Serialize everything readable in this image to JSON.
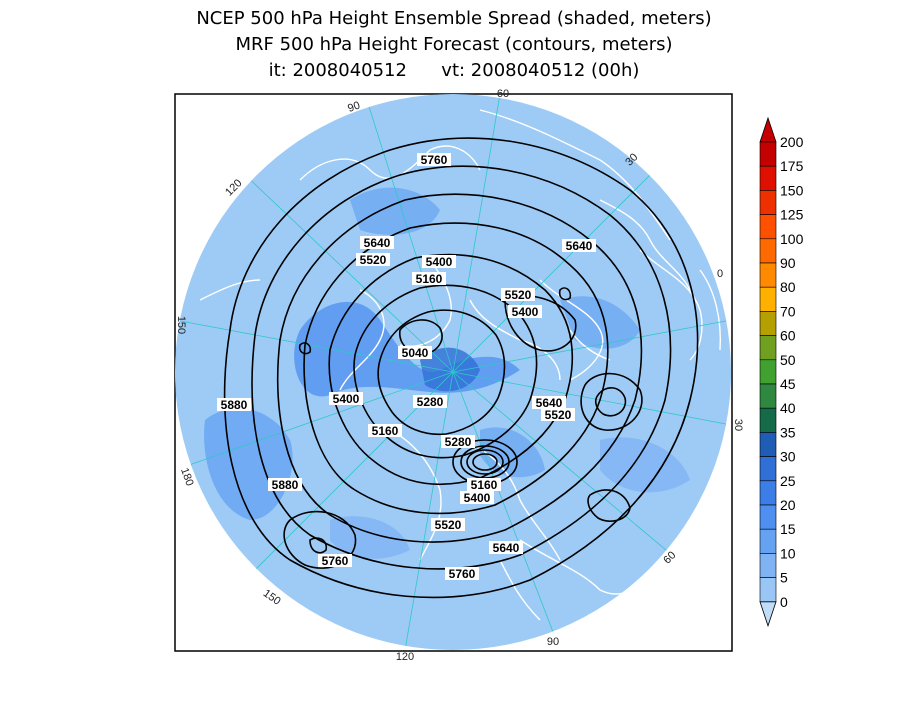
{
  "title": {
    "line1": "NCEP 500 hPa Height Ensemble Spread (shaded, meters)",
    "line2": "MRF 500 hPa Height Forecast (contours, meters)",
    "line3": "it: 2008040512      vt: 2008040512 (00h)"
  },
  "colors": {
    "ocean_base": "#9dcbf5",
    "coast": "#ffffff",
    "grid": "#2fc8c8",
    "contour": "#000000",
    "frame": "#000000"
  },
  "longitude_labels": [
    "60",
    "30",
    "0",
    "30",
    "60",
    "90",
    "120",
    "150",
    "180",
    "150",
    "120",
    "90"
  ],
  "contour_labels": [
    "5760",
    "5640",
    "5520",
    "5400",
    "5280",
    "5160",
    "5040",
    "5880"
  ],
  "colorbar": {
    "levels": [
      "200",
      "175",
      "150",
      "125",
      "100",
      "90",
      "80",
      "70",
      "60",
      "50",
      "45",
      "40",
      "35",
      "30",
      "25",
      "20",
      "15",
      "10",
      "5",
      "0"
    ],
    "colors": [
      "#c40000",
      "#e01000",
      "#ee3000",
      "#ff5000",
      "#ff6a00",
      "#ff8a00",
      "#ffb000",
      "#b4a000",
      "#70a020",
      "#40a030",
      "#2e8840",
      "#156a48",
      "#1f5cb4",
      "#2f6fd6",
      "#3b7ee8",
      "#4e8ff0",
      "#66a2f2",
      "#7fb3f4",
      "#9ac6f6",
      "#bfdcf9"
    ]
  }
}
